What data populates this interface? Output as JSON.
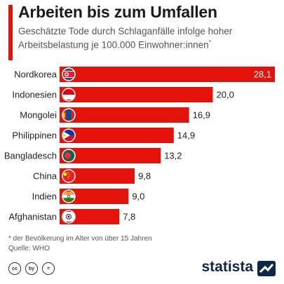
{
  "header": {
    "title": "Arbeiten bis zum Umfallen",
    "subtitle": "Geschätzte Tode durch Schlaganfälle infolge hoher Arbeitsbelastung je 100.000 Einwohner:innen",
    "subtitle_mark": "*"
  },
  "chart_data": {
    "type": "bar",
    "orientation": "horizontal",
    "title": "Arbeiten bis zum Umfallen",
    "subtitle": "Geschätzte Tode durch Schlaganfälle infolge hoher Arbeitsbelastung je 100.000 Einwohner:innen*",
    "categories": [
      "Nordkorea",
      "Indonesien",
      "Mongolei",
      "Philippinen",
      "Bangladesch",
      "China",
      "Indien",
      "Afghanistan"
    ],
    "values": [
      28.1,
      20.0,
      16.9,
      14.9,
      13.2,
      9.8,
      9.0,
      7.8
    ],
    "value_labels": [
      "28,1",
      "20,0",
      "16,9",
      "14,9",
      "13,2",
      "9,8",
      "9,0",
      "7,8"
    ],
    "xlim": [
      0,
      28.1
    ],
    "grid": false,
    "bar_color": "#e3120b"
  },
  "flags": [
    {
      "name": "north-korea-flag-icon"
    },
    {
      "name": "indonesia-flag-icon"
    },
    {
      "name": "mongolia-flag-icon"
    },
    {
      "name": "philippines-flag-icon"
    },
    {
      "name": "bangladesh-flag-icon"
    },
    {
      "name": "china-flag-icon"
    },
    {
      "name": "india-flag-icon"
    },
    {
      "name": "afghanistan-flag-icon"
    }
  ],
  "notes": {
    "footnote": "* der Bevölkerung im Alter von über 15 Jahren",
    "source": "Quelle: WHO"
  },
  "footer": {
    "cc_icons": [
      "cc",
      "by",
      "="
    ],
    "brand": "statista"
  }
}
